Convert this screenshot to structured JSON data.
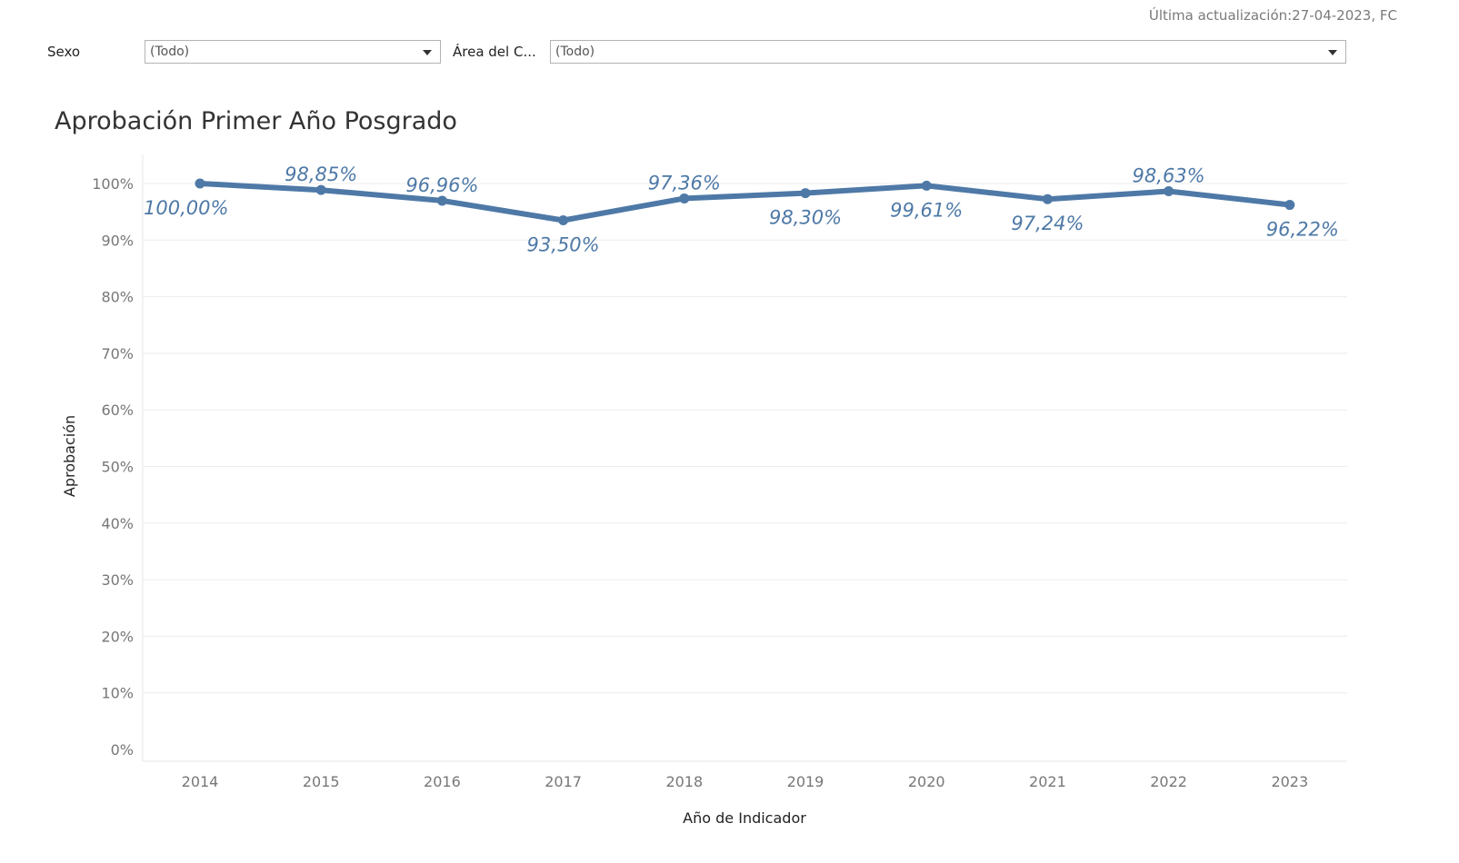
{
  "header": {
    "update_note": "Última actualización:27-04-2023, FC"
  },
  "filters": [
    {
      "label": "Sexo",
      "value": "(Todo)"
    },
    {
      "label": "Área del C...",
      "value": "(Todo)"
    }
  ],
  "colors": {
    "series": "#4e79a7",
    "grid": "#ececec"
  },
  "chart_data": {
    "type": "line",
    "title": "Aprobación Primer Año Posgrado",
    "xlabel": "Año de Indicador",
    "ylabel": "Aprobación",
    "categories": [
      "2014",
      "2015",
      "2016",
      "2017",
      "2018",
      "2019",
      "2020",
      "2021",
      "2022",
      "2023"
    ],
    "values": [
      100.0,
      98.85,
      96.96,
      93.5,
      97.36,
      98.3,
      99.61,
      97.24,
      98.63,
      96.22
    ],
    "value_labels": [
      "100,00%",
      "98,85%",
      "96,96%",
      "93,50%",
      "97,36%",
      "98,30%",
      "99,61%",
      "97,24%",
      "98,63%",
      "96,22%"
    ],
    "label_positions": [
      "below",
      "above",
      "above",
      "below",
      "above",
      "below",
      "below",
      "below",
      "above",
      "below"
    ],
    "yticks": [
      0,
      10,
      20,
      30,
      40,
      50,
      60,
      70,
      80,
      90,
      100
    ],
    "ytick_labels": [
      "0%",
      "10%",
      "20%",
      "30%",
      "40%",
      "50%",
      "60%",
      "70%",
      "80%",
      "90%",
      "100%"
    ],
    "ylim": [
      0,
      100
    ],
    "grid": true
  }
}
